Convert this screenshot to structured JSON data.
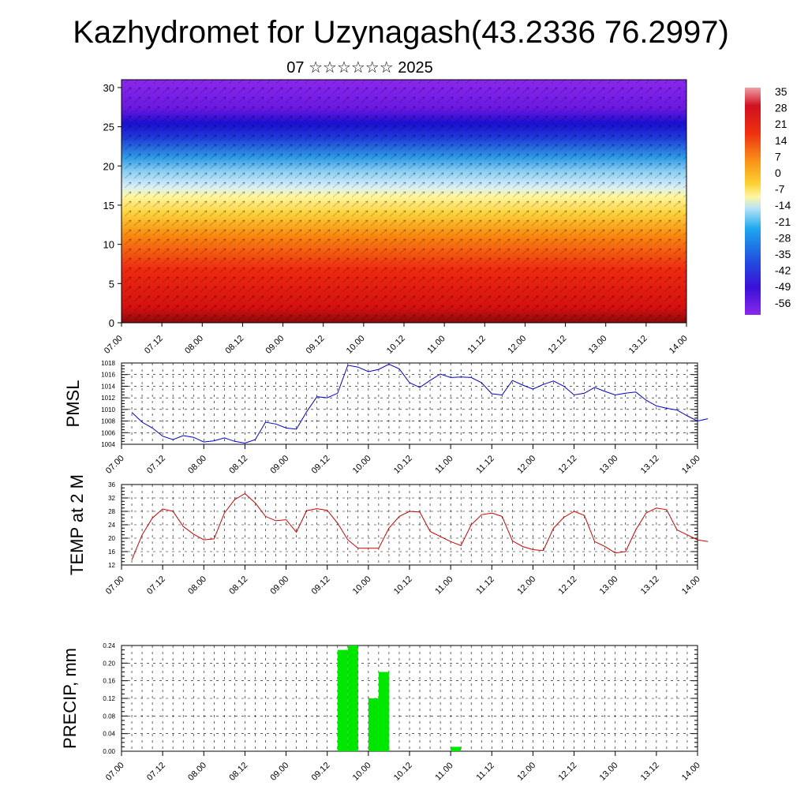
{
  "header": {
    "title": "Kazhydromet for Uzynagash(43.2336 76.2997)",
    "subtitle": "07 ☆☆☆☆☆☆ 2025"
  },
  "time_ticks": [
    "07.00",
    "07.12",
    "08.00",
    "08.12",
    "09.00",
    "09.12",
    "10.00",
    "10.12",
    "11.00",
    "11.12",
    "12.00",
    "12.12",
    "13.00",
    "13.12",
    "14.00"
  ],
  "colorbar": {
    "labels": [
      "35",
      "28",
      "21",
      "14",
      "7",
      "0",
      "-7",
      "-14",
      "-21",
      "-28",
      "-35",
      "-42",
      "-49",
      "-56"
    ]
  },
  "chart_data": [
    {
      "type": "heatmap",
      "name": "temperature-wind cross-section",
      "x_ticks": [
        "07.00",
        "07.12",
        "08.00",
        "08.12",
        "09.00",
        "09.12",
        "10.00",
        "10.12",
        "11.00",
        "11.12",
        "12.00",
        "12.12",
        "13.00",
        "13.12",
        "14.00"
      ],
      "y_ticks": [
        0,
        5,
        10,
        15,
        20,
        25,
        30
      ],
      "ylim": [
        0,
        31
      ],
      "colorbar": [
        35,
        28,
        21,
        14,
        7,
        0,
        -7,
        -14,
        -21,
        -28,
        -35,
        -42,
        -49,
        -56
      ],
      "overlay": "wind vectors and streamlines"
    },
    {
      "type": "line",
      "ylabel": "PMSL",
      "ylim": [
        1004,
        1018
      ],
      "y_ticks": [
        1004,
        1006,
        1008,
        1010,
        1012,
        1014,
        1016,
        1018
      ],
      "x_ticks": [
        "07.00",
        "07.12",
        "08.00",
        "08.12",
        "09.00",
        "09.12",
        "10.00",
        "10.12",
        "11.00",
        "11.12",
        "12.00",
        "12.12",
        "13.00",
        "13.12",
        "14.00"
      ],
      "color": "#0000cc",
      "series": [
        {
          "values": [
            1009.5,
            1007.8,
            1006.8,
            1005.4,
            1004.8,
            1005.5,
            1005.2,
            1004.4,
            1004.6,
            1005.1,
            1004.5,
            1004.2,
            1004.8,
            1007.8,
            1007.5,
            1006.8,
            1006.6,
            1009.6,
            1012.2,
            1012.0,
            1012.8,
            1017.6,
            1017.3,
            1016.5,
            1016.9,
            1017.8,
            1017.0,
            1014.6,
            1013.8,
            1015.0,
            1016.1,
            1015.5,
            1015.6,
            1015.5,
            1014.6,
            1012.7,
            1012.5,
            1015.0,
            1014.2,
            1013.5,
            1014.3,
            1014.9,
            1014.0,
            1012.5,
            1012.8,
            1013.8,
            1013.1,
            1012.5,
            1012.8,
            1013.0,
            1011.6,
            1010.6,
            1010.2,
            1009.9,
            1008.9,
            1008.0,
            1008.4
          ]
        }
      ]
    },
    {
      "type": "line",
      "ylabel": "TEMP at 2 M",
      "ylim": [
        12,
        36
      ],
      "y_ticks": [
        12,
        16,
        20,
        24,
        28,
        32,
        36
      ],
      "x_ticks": [
        "07.00",
        "07.12",
        "08.00",
        "08.12",
        "09.00",
        "09.12",
        "10.00",
        "10.12",
        "11.00",
        "11.12",
        "12.00",
        "12.12",
        "13.00",
        "13.12",
        "14.00"
      ],
      "color": "#cc0000",
      "series": [
        {
          "values": [
            13.5,
            21,
            26,
            28.7,
            28,
            23.5,
            21.2,
            19.5,
            19.8,
            27.5,
            31.5,
            33.3,
            30.5,
            26.5,
            25.2,
            25.5,
            21.8,
            28.2,
            28.8,
            28.3,
            24.5,
            19.5,
            17,
            17,
            17,
            23,
            26.5,
            28,
            27.8,
            22,
            20.5,
            19,
            17.8,
            24,
            27,
            27.5,
            26.5,
            19.2,
            17.5,
            16.6,
            16.3,
            23,
            26.2,
            28,
            26.8,
            19,
            17.5,
            15.6,
            16,
            22.5,
            27.5,
            29,
            28.5,
            22.5,
            21,
            19.5,
            19
          ]
        }
      ]
    },
    {
      "type": "bar",
      "ylabel": "PRECIP, mm",
      "ylim": [
        0,
        0.24
      ],
      "y_ticks": [
        "0.00",
        "0.04",
        "0.08",
        "0.12",
        "0.16",
        "0.20",
        "0.24"
      ],
      "x_ticks": [
        "07.00",
        "07.12",
        "08.00",
        "08.12",
        "09.00",
        "09.12",
        "10.00",
        "10.12",
        "11.00",
        "11.12",
        "12.00",
        "12.12",
        "13.00",
        "13.12",
        "14.00"
      ],
      "color": "#00e600",
      "bars": [
        {
          "x_hours": 63,
          "value": 0.23
        },
        {
          "x_hours": 66,
          "value": 0.24
        },
        {
          "x_hours": 72,
          "value": 0.12
        },
        {
          "x_hours": 75,
          "value": 0.18
        },
        {
          "x_hours": 96,
          "value": 0.01
        }
      ]
    }
  ]
}
